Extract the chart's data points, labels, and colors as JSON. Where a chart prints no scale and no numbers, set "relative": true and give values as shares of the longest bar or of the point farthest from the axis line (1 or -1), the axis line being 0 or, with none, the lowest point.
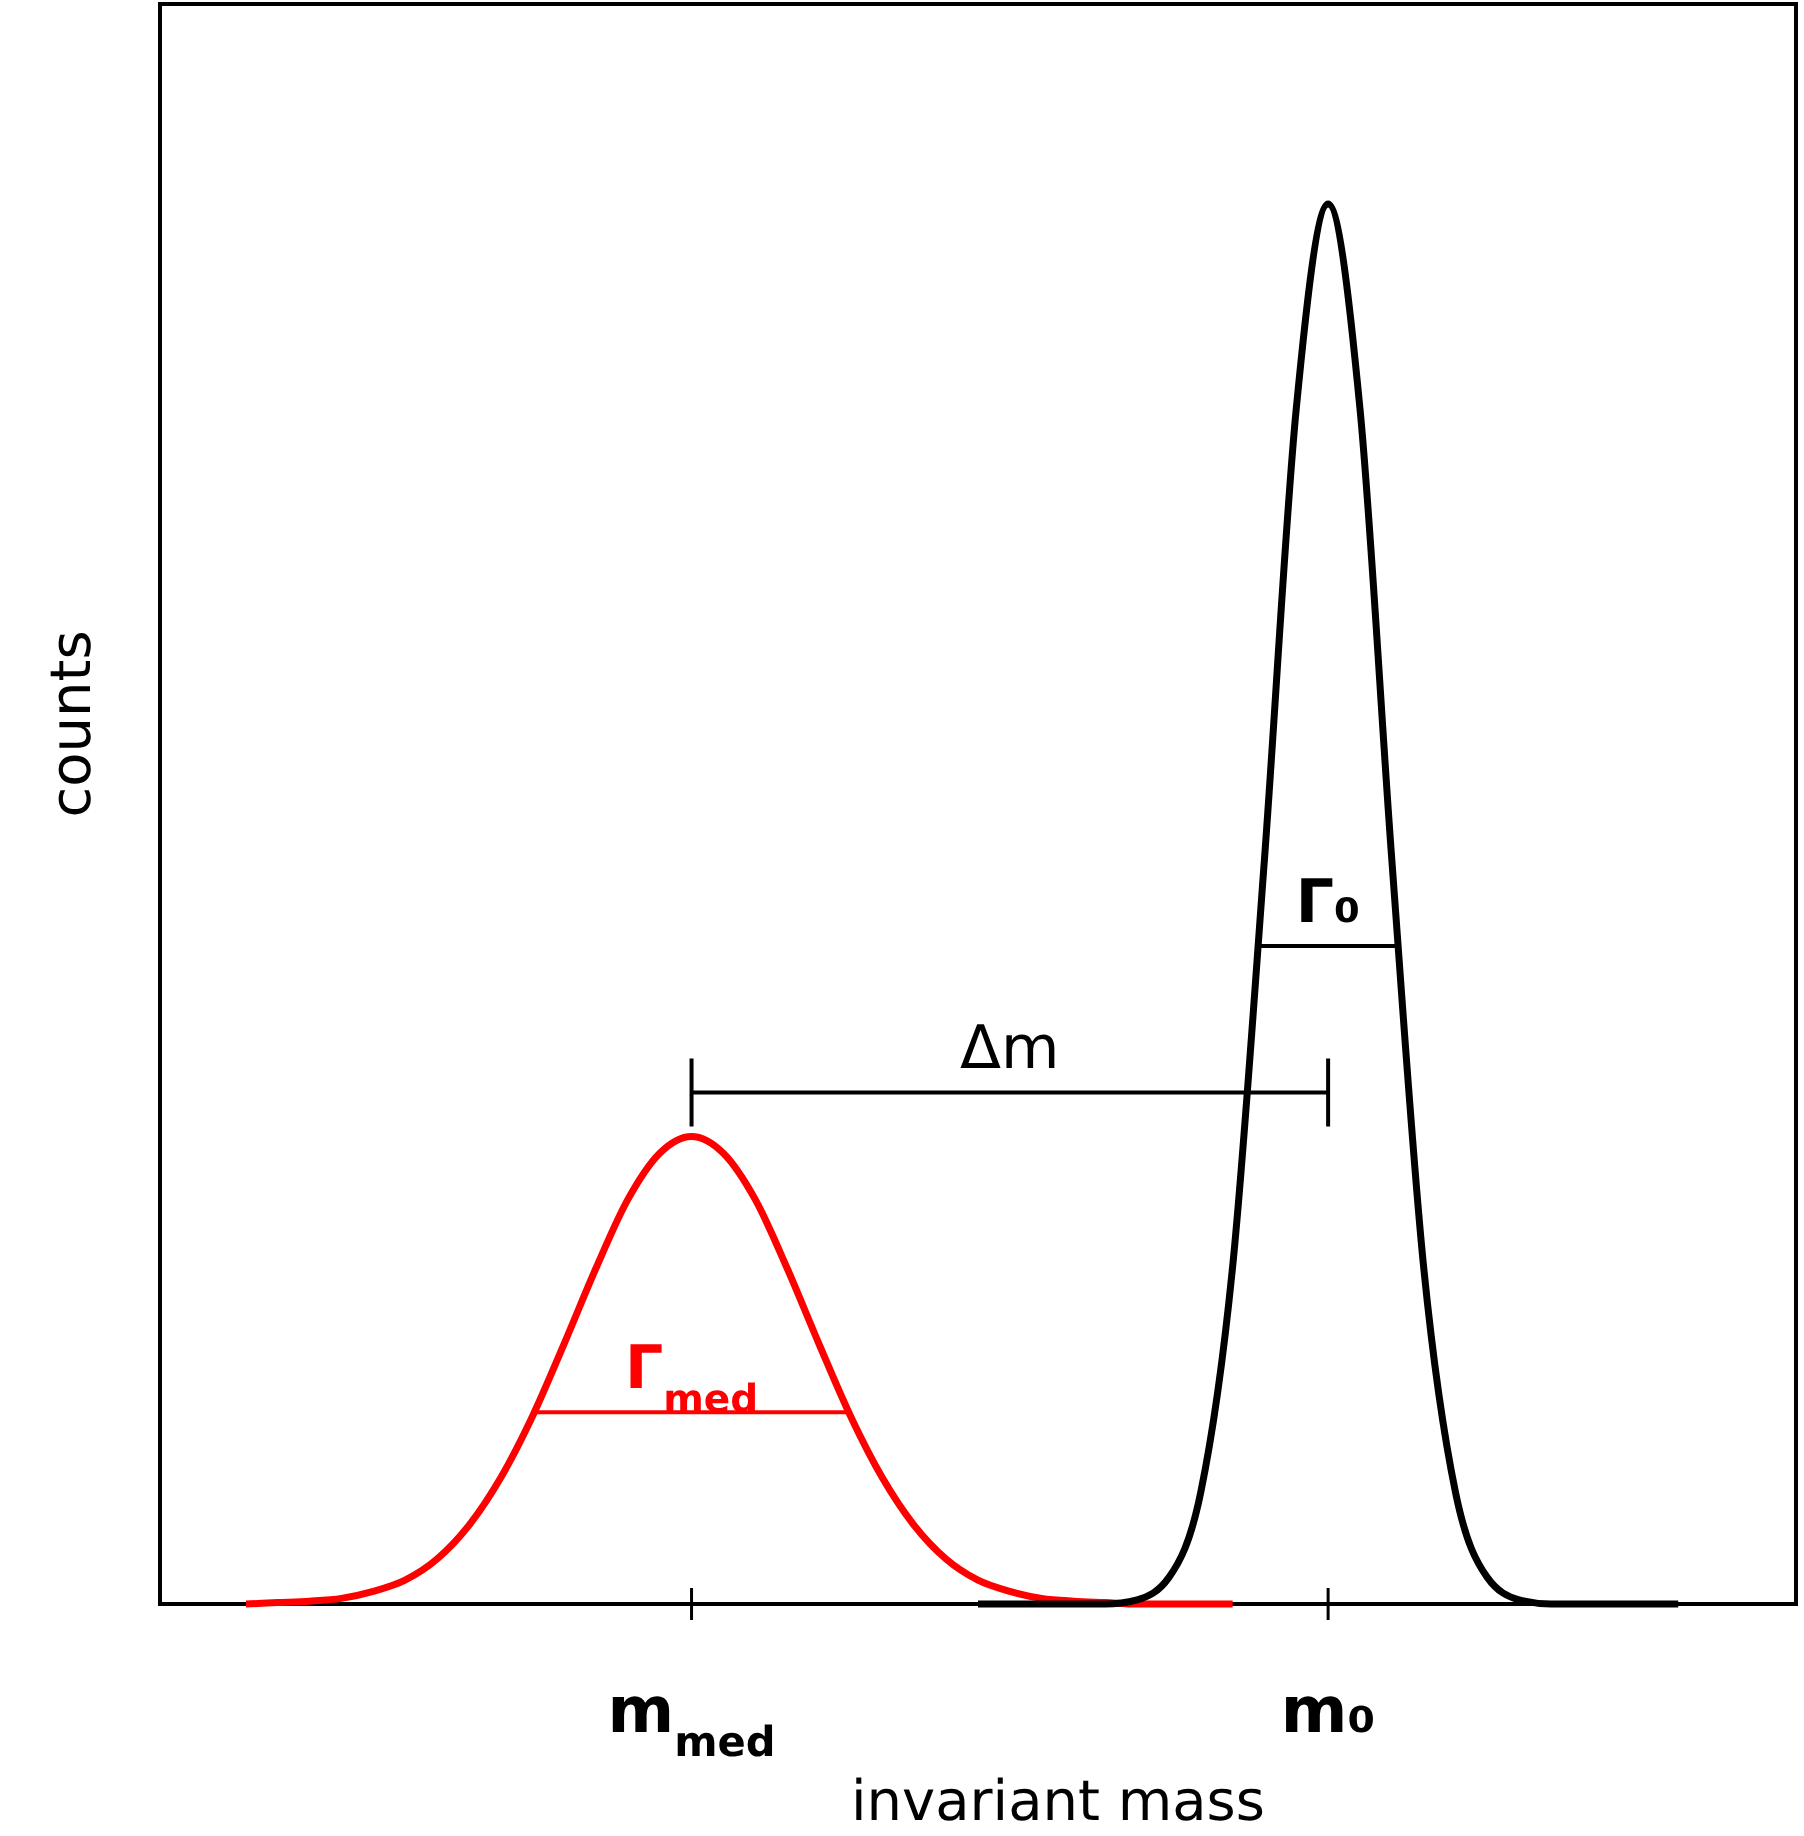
{
  "chart_data": {
    "type": "line",
    "relative": true,
    "xlabel": "invariant mass",
    "ylabel": "counts",
    "categories": [
      null,
      null,
      null,
      null,
      null,
      null,
      null,
      null,
      null,
      null,
      null,
      null,
      null,
      null,
      "m$_{med}$",
      null,
      null,
      null,
      null,
      null,
      null,
      null,
      null,
      null,
      null,
      null,
      null,
      null,
      null,
      null,
      null,
      null,
      null,
      null,
      "m₀",
      null,
      null,
      null,
      null,
      null,
      null,
      null,
      null,
      null,
      null,
      null,
      null
    ],
    "series": [
      {
        "color": "#ff0000",
        "values": [
          0,
          0.001,
          0.002,
          0.004,
          0.009,
          0.017,
          0.032,
          0.056,
          0.09,
          0.134,
          0.186,
          0.24,
          0.289,
          0.322,
          0.334,
          0.322,
          0.289,
          0.24,
          0.186,
          0.134,
          0.09,
          0.056,
          0.032,
          0.017,
          0.009,
          0.004,
          0.002,
          0.001,
          0,
          0,
          0,
          0,
          null,
          null,
          null,
          null,
          null,
          null,
          null,
          null,
          null,
          null,
          null,
          null,
          null,
          null,
          null
        ]
      },
      {
        "color": "#000000",
        "values": [
          null,
          null,
          null,
          null,
          null,
          null,
          null,
          null,
          null,
          null,
          null,
          null,
          null,
          null,
          null,
          null,
          null,
          null,
          null,
          null,
          null,
          null,
          null,
          0,
          0,
          0,
          0,
          0,
          0.003,
          0.019,
          0.08,
          0.241,
          0.532,
          0.854,
          1,
          0.854,
          0.532,
          0.241,
          0.08,
          0.019,
          0.003,
          0,
          0,
          0,
          0,
          0,
          null
        ]
      }
    ],
    "annotations": [
      "Γ$_{med}$",
      "Γ₀",
      "Δm"
    ]
  }
}
